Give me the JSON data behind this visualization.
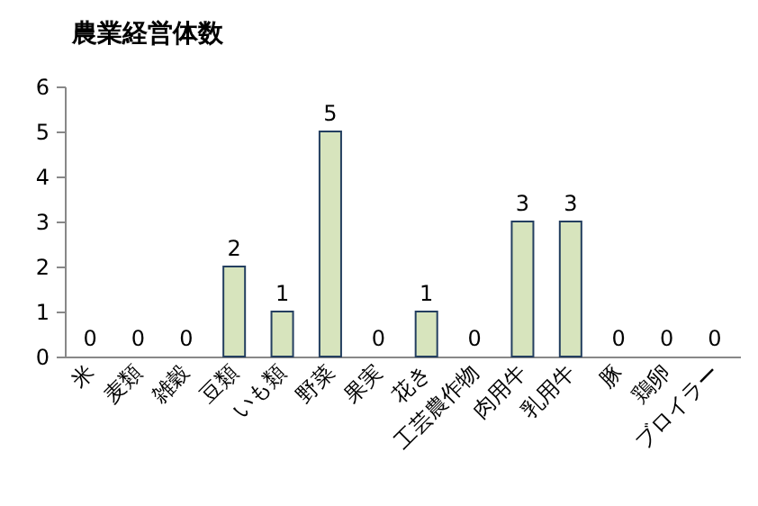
{
  "chart_data": {
    "type": "bar",
    "title": "農業経営体数",
    "categories": [
      "米",
      "麦類",
      "雑穀",
      "豆類",
      "いも類",
      "野菜",
      "果実",
      "花き",
      "工芸農作物",
      "肉用牛",
      "乳用牛",
      "豚",
      "鶏卵",
      "ブロイラー"
    ],
    "values": [
      0,
      0,
      0,
      2,
      1,
      5,
      0,
      1,
      0,
      3,
      3,
      0,
      0,
      0
    ],
    "color": "#d7e4bd",
    "ylim": [
      0,
      6
    ],
    "yticks": [
      0,
      1,
      2,
      3,
      4,
      5,
      6
    ],
    "grid": false,
    "data_labels": true
  }
}
